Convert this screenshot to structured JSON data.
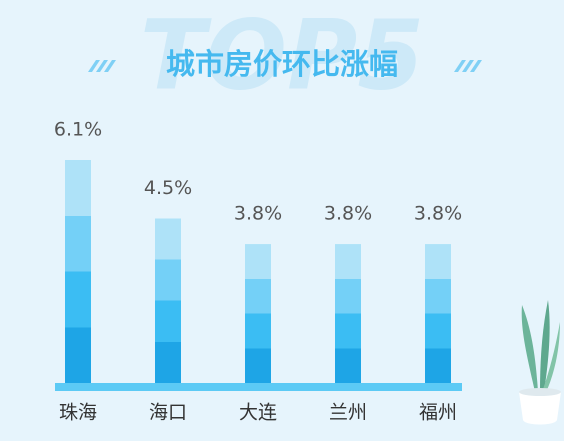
{
  "chart_data": {
    "type": "bar",
    "watermark": "TOP5",
    "title": "城市房价环比涨幅",
    "categories": [
      "珠海",
      "海口",
      "大连",
      "兰州",
      "福州"
    ],
    "values": [
      6.1,
      4.5,
      3.8,
      3.8,
      3.8
    ],
    "value_labels": [
      "6.1%",
      "4.5%",
      "3.8%",
      "3.8%",
      "3.8%"
    ],
    "color": "#29aee9"
  }
}
